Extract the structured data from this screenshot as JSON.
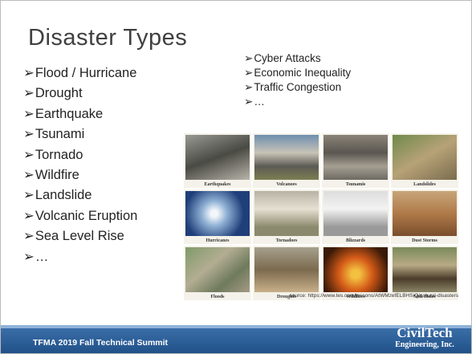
{
  "title": "Disaster Types",
  "left_list": [
    "Flood / Hurricane",
    "Drought",
    "Earthquake",
    "Tsunami",
    "Tornado",
    "Wildfire",
    "Landslide",
    "Volcanic Eruption",
    "Sea Level Rise",
    "…"
  ],
  "right_list": [
    "Cyber Attacks",
    "Economic Inequality",
    "Traffic Congestion",
    "…"
  ],
  "photos": [
    {
      "caption": "Earthquakes"
    },
    {
      "caption": "Volcanoes"
    },
    {
      "caption": "Tsunamis"
    },
    {
      "caption": "Landslides"
    },
    {
      "caption": "Hurricanes"
    },
    {
      "caption": "Tornadoes"
    },
    {
      "caption": "Blizzards"
    },
    {
      "caption": "Dust Storms"
    },
    {
      "caption": "Floods"
    },
    {
      "caption": "Droughts"
    },
    {
      "caption": "Wildfires"
    },
    {
      "caption": "Sink Holes"
    }
  ],
  "source": "source: https://www.tes.com/lessons/AtWMzefELBHSiQ/natural-disasters",
  "footer": {
    "text": "TFMA 2019 Fall Technical Summit",
    "logo": "CivilTech",
    "logo_sub": "Engineering, Inc."
  }
}
